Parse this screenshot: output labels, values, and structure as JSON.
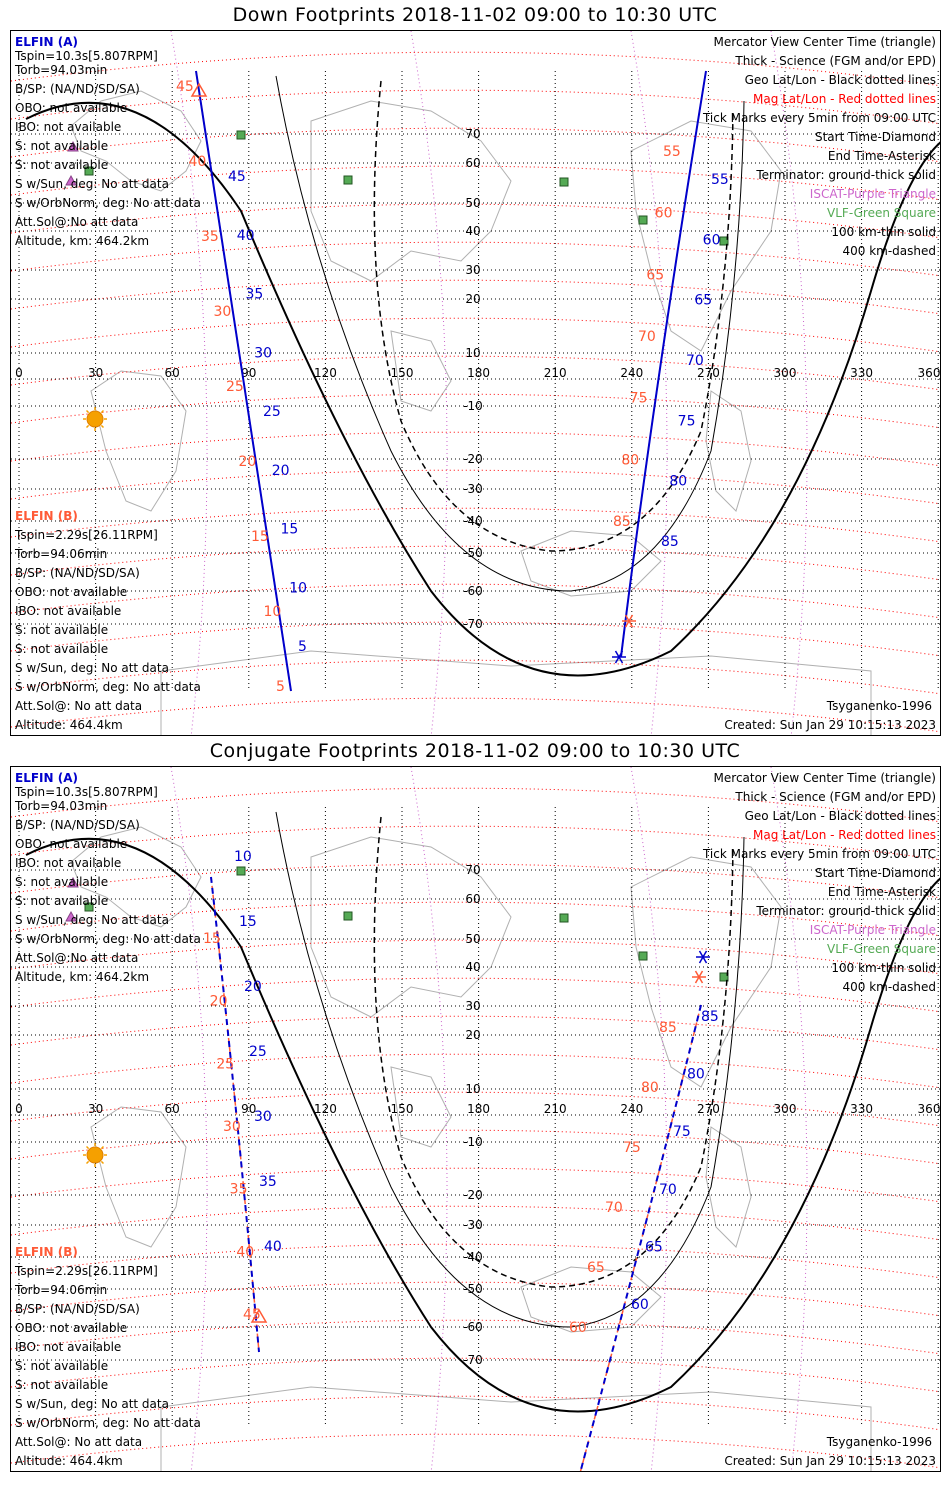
{
  "colors": {
    "elfin_a": "#0000cc",
    "elfin_b": "#ff5a36",
    "mag_grid": "#ff0000",
    "iscat": "#cc66cc",
    "vlf": "#55aa55",
    "coast": "#b0b0b0"
  },
  "lon_ticks": [
    "0",
    "30",
    "60",
    "90",
    "120",
    "150",
    "180",
    "210",
    "240",
    "270",
    "300",
    "330",
    "360"
  ],
  "lat_ticks": [
    "70",
    "60",
    "50",
    "40",
    "30",
    "20",
    "10",
    "-10",
    "-20",
    "-30",
    "-40",
    "-50",
    "-60",
    "-70"
  ],
  "legend_right": [
    "Mercator View Center Time (triangle)",
    "Thick - Science (FGM and/or EPD)",
    "Geo Lat/Lon - Black dotted lines",
    "Mag Lat/Lon - Red dotted lines",
    "Tick Marks every 5min from 09:00 UTC",
    "Start Time-Diamond",
    "End Time-Asterisk",
    "Terminator: ground-thick solid",
    "ISCAT-Purple Triangle",
    "VLF-Green Square",
    "100 km-thin solid",
    "400 km-dashed"
  ],
  "sat_a": {
    "name": "ELFIN (A)",
    "lines": [
      "Tspin=10.3s[5.807RPM]",
      "Torb=94.03min",
      "B/SP: (NA/ND/SD/SA)",
      "OBO: not available",
      "IBO: not available",
      "S: not available",
      "S: not available",
      "S w/Sun, deg: No att data",
      "S w/OrbNorm, deg: No att data",
      "Att.Sol@:No att data",
      "Altitude, km: 464.2km"
    ]
  },
  "sat_b": {
    "name": "ELFIN (B)",
    "lines": [
      "Tspin=2.29s[26.11RPM]",
      "Torb=94.06min",
      "B/SP: (NA/ND/SD/SA)",
      "OBO: not available",
      "IBO: not available",
      "S: not available",
      "S: not available",
      "S w/Sun, deg: No att data",
      "S w/OrbNorm, deg: No att data",
      "Att.Sol@: No att data",
      "Altitude: 464.4km"
    ]
  },
  "model": "Tsyganenko-1996",
  "created": "Created: Sun Jan 29 10:15:13 2023",
  "panels": [
    {
      "title": "Down Footprints 2018-11-02 09:00 to 10:30 UTC",
      "track_w_a": [
        "45",
        "40",
        "35",
        "30",
        "25",
        "20",
        "15",
        "10",
        "5"
      ],
      "track_w_b": [
        "45",
        "40",
        "35",
        "30",
        "25",
        "20",
        "15",
        "10",
        "5"
      ],
      "track_e_a": [
        "55",
        "60",
        "65",
        "70",
        "75",
        "80",
        "85"
      ],
      "track_e_b": [
        "55",
        "60",
        "65",
        "70",
        "75",
        "80",
        "85"
      ]
    },
    {
      "title": "Conjugate Footprints 2018-11-02 09:00 to 10:30 UTC",
      "track_w_a": [
        "10",
        "15",
        "20",
        "25",
        "30",
        "35",
        "40"
      ],
      "track_w_b": [
        "15",
        "20",
        "25",
        "30",
        "35",
        "40",
        "45"
      ],
      "track_e_a": [
        "85",
        "80",
        "75",
        "70",
        "65",
        "60"
      ],
      "track_e_b": [
        "85",
        "80",
        "75",
        "70",
        "65",
        "60"
      ]
    }
  ]
}
